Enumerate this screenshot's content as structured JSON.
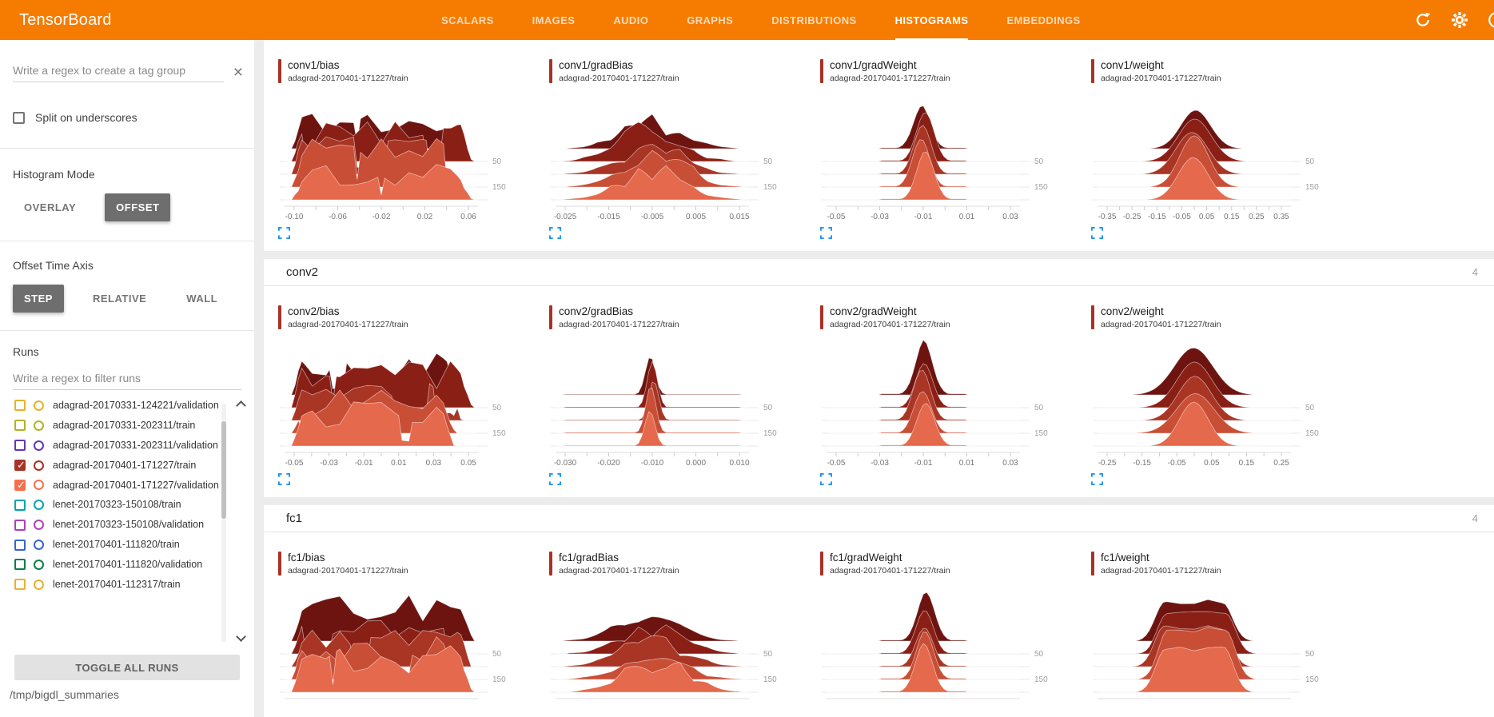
{
  "header": {
    "title": "TensorBoard",
    "tabs": [
      {
        "label": "SCALARS",
        "active": false
      },
      {
        "label": "IMAGES",
        "active": false
      },
      {
        "label": "AUDIO",
        "active": false
      },
      {
        "label": "GRAPHS",
        "active": false
      },
      {
        "label": "DISTRIBUTIONS",
        "active": false
      },
      {
        "label": "HISTOGRAMS",
        "active": true
      },
      {
        "label": "EMBEDDINGS",
        "active": false
      }
    ],
    "icons": [
      "refresh-icon",
      "settings-icon",
      "help-icon"
    ],
    "color": "#f57c00"
  },
  "sidebar": {
    "tag_filter": {
      "placeholder": "Write a regex to create a tag group"
    },
    "split_checkbox": {
      "label": "Split on underscores",
      "checked": false
    },
    "histogram_mode": {
      "label": "Histogram Mode",
      "options": [
        "OVERLAY",
        "OFFSET"
      ],
      "selected": "OFFSET"
    },
    "offset_time_axis": {
      "label": "Offset Time Axis",
      "options": [
        "STEP",
        "RELATIVE",
        "WALL"
      ],
      "selected": "STEP"
    },
    "runs": {
      "label": "Runs",
      "filter_placeholder": "Write a regex to filter runs",
      "items": [
        {
          "label": "adagrad-20170331-124221/validation",
          "color": "#e8b22c",
          "checked": false
        },
        {
          "label": "adagrad-20170331-202311/train",
          "color": "#afb42b",
          "checked": false
        },
        {
          "label": "adagrad-20170331-202311/validation",
          "color": "#6338b6",
          "checked": false
        },
        {
          "label": "adagrad-20170401-171227/train",
          "color": "#a83226",
          "checked": true
        },
        {
          "label": "adagrad-20170401-171227/validation",
          "color": "#f4704b",
          "checked": true
        },
        {
          "label": "lenet-20170323-150108/train",
          "color": "#00a4b3",
          "checked": false
        },
        {
          "label": "lenet-20170323-150108/validation",
          "color": "#b23fb8",
          "checked": false
        },
        {
          "label": "lenet-20170401-111820/train",
          "color": "#3864cf",
          "checked": false
        },
        {
          "label": "lenet-20170401-111820/validation",
          "color": "#0c7f43",
          "checked": false
        },
        {
          "label": "lenet-20170401-112317/train",
          "color": "#e8b22c",
          "checked": false
        }
      ],
      "toggle_button": "TOGGLE ALL RUNS"
    },
    "log_dir": "/tmp/bigdl_summaries"
  },
  "main": {
    "accent_color": "#a83226",
    "expand_icon_color": "#2196f3",
    "ridge_colors": [
      "#6d1410",
      "#8a1f15",
      "#a93524",
      "#c94e36",
      "#e5694c"
    ],
    "sections": [
      {
        "name": "conv1",
        "header_visible": false,
        "count": "",
        "charts": [
          {
            "tag": "conv1/bias",
            "run": "adagrad-20170401-171227/train",
            "shape": "jagged",
            "xticks": [
              "-0.10",
              "-0.06",
              "-0.02",
              "0.02",
              "0.06"
            ],
            "yticks": [
              "50",
              "150"
            ]
          },
          {
            "tag": "conv1/gradBias",
            "run": "adagrad-20170401-171227/train",
            "shape": "bumpybell",
            "xticks": [
              "-0.025",
              "-0.015",
              "-0.005",
              "0.005",
              "0.015"
            ],
            "yticks": [
              "50",
              "150"
            ]
          },
          {
            "tag": "conv1/gradWeight",
            "run": "adagrad-20170401-171227/train",
            "shape": "spike",
            "xticks": [
              "-0.05",
              "-0.03",
              "-0.01",
              "0.01",
              "0.03"
            ],
            "yticks": [
              "50",
              "150"
            ]
          },
          {
            "tag": "conv1/weight",
            "run": "adagrad-20170401-171227/train",
            "shape": "bell",
            "xticks": [
              "-0.35",
              "-0.25",
              "-0.15",
              "-0.05",
              "0.05",
              "0.15",
              "0.25",
              "0.35"
            ],
            "yticks": [
              "50",
              "150"
            ]
          }
        ]
      },
      {
        "name": "conv2",
        "header_visible": true,
        "count": "4",
        "charts": [
          {
            "tag": "conv2/bias",
            "run": "adagrad-20170401-171227/train",
            "shape": "jagged",
            "xticks": [
              "-0.05",
              "-0.03",
              "-0.01",
              "0.01",
              "0.03",
              "0.05"
            ],
            "yticks": [
              "50",
              "150"
            ]
          },
          {
            "tag": "conv2/gradBias",
            "run": "adagrad-20170401-171227/train",
            "shape": "needle",
            "xticks": [
              "-0.030",
              "-0.020",
              "-0.010",
              "0.000",
              "0.010"
            ],
            "yticks": [
              "50",
              "150"
            ]
          },
          {
            "tag": "conv2/gradWeight",
            "run": "adagrad-20170401-171227/train",
            "shape": "spike",
            "xticks": [
              "-0.05",
              "-0.03",
              "-0.01",
              "0.01",
              "0.03"
            ],
            "yticks": [
              "50",
              "150"
            ]
          },
          {
            "tag": "conv2/weight",
            "run": "adagrad-20170401-171227/train",
            "shape": "bell",
            "xticks": [
              "-0.25",
              "-0.15",
              "-0.05",
              "0.05",
              "0.15",
              "0.25"
            ],
            "yticks": [
              "50",
              "150"
            ]
          }
        ]
      },
      {
        "name": "fc1",
        "header_visible": true,
        "count": "4",
        "charts": [
          {
            "tag": "fc1/bias",
            "run": "adagrad-20170401-171227/train",
            "shape": "jagged",
            "xticks": [],
            "yticks": [
              "50",
              "150"
            ]
          },
          {
            "tag": "fc1/gradBias",
            "run": "adagrad-20170401-171227/train",
            "shape": "bumpybell",
            "xticks": [],
            "yticks": [
              "50",
              "150"
            ]
          },
          {
            "tag": "fc1/gradWeight",
            "run": "adagrad-20170401-171227/train",
            "shape": "spike",
            "xticks": [],
            "yticks": [
              "50",
              "150"
            ]
          },
          {
            "tag": "fc1/weight",
            "run": "adagrad-20170401-171227/train",
            "shape": "flatbell",
            "xticks": [],
            "yticks": [
              "50",
              "150"
            ]
          }
        ]
      }
    ]
  }
}
